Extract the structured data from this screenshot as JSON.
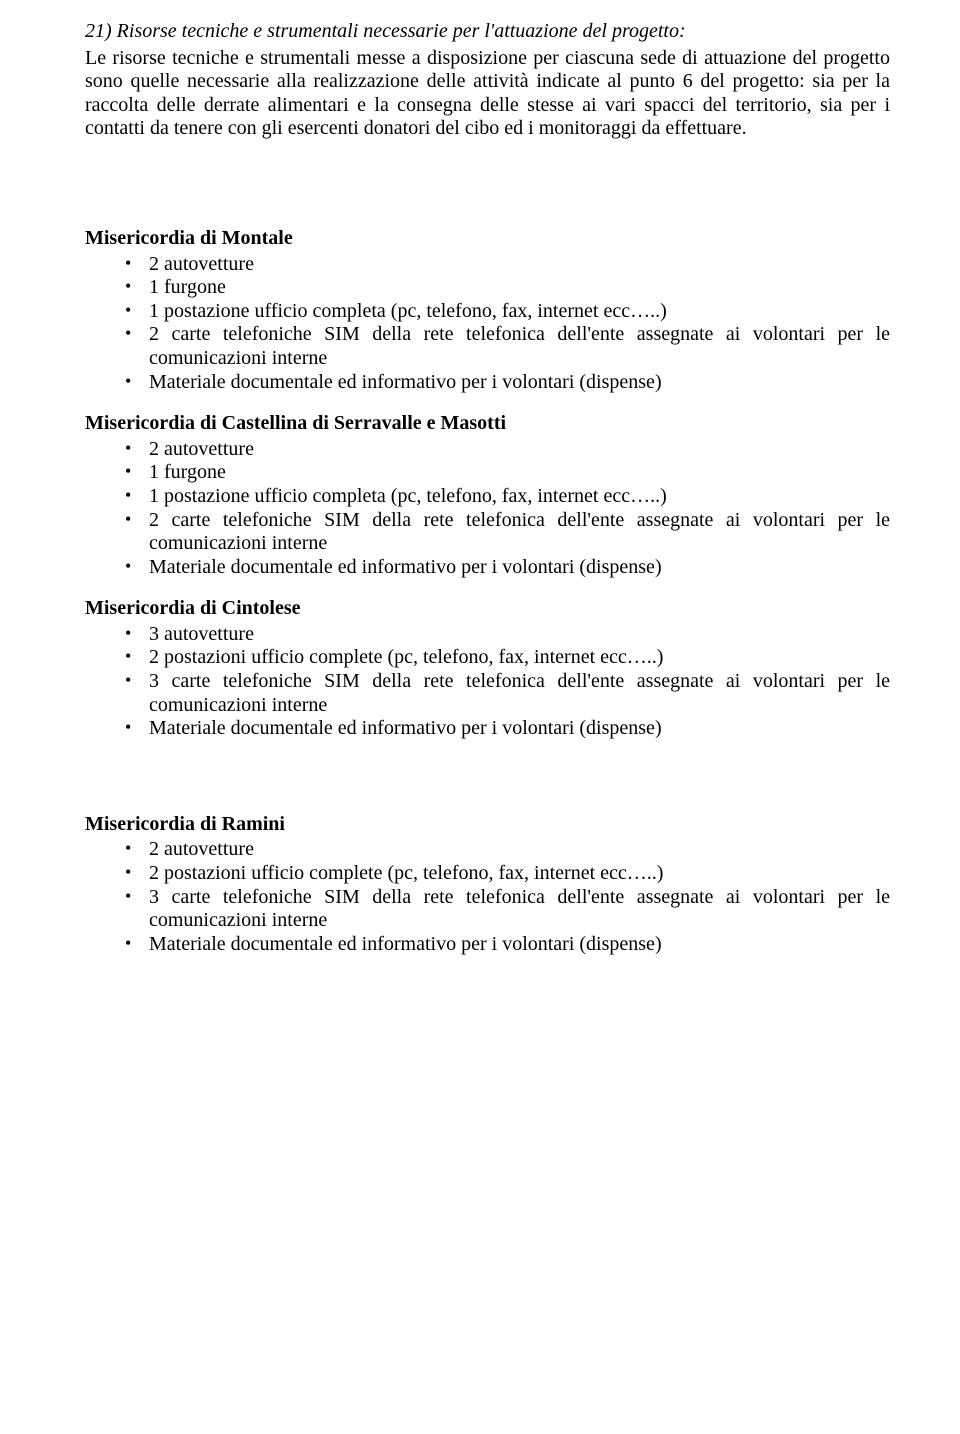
{
  "section": {
    "number": "21)",
    "title_italic": "Risorse tecniche e strumentali necessarie per l'attuazione del progetto:"
  },
  "intro_para": "Le risorse tecniche e strumentali messe a disposizione per ciascuna sede di attuazione del progetto sono quelle necessarie alla realizzazione delle attività indicate al punto 6 del progetto: sia per la raccolta delle derrate alimentari e la consegna delle stesse ai vari spacci del territorio, sia per i contatti da tenere con gli esercenti donatori del cibo ed i monitoraggi da effettuare.",
  "groups": [
    {
      "title": "Misericordia di Montale",
      "items": [
        "2 autovetture",
        "1 furgone",
        "1 postazione ufficio completa (pc, telefono, fax, internet ecc…..)",
        "2 carte telefoniche SIM della rete telefonica dell'ente assegnate ai volontari per le comunicazioni interne",
        "Materiale documentale ed informativo per i volontari (dispense)"
      ]
    },
    {
      "title": "Misericordia di Castellina di Serravalle e Masotti",
      "items": [
        "2 autovetture",
        "1 furgone",
        "1 postazione ufficio completa (pc, telefono, fax, internet ecc…..)",
        "2 carte telefoniche SIM della rete telefonica dell'ente assegnate ai volontari per le comunicazioni interne",
        "Materiale documentale ed informativo per i volontari (dispense)"
      ]
    },
    {
      "title": "Misericordia di Cintolese",
      "items": [
        "3 autovetture",
        "2 postazioni ufficio complete (pc, telefono, fax, internet ecc…..)",
        "3 carte telefoniche SIM della rete telefonica dell'ente assegnate ai volontari per le comunicazioni interne",
        "Materiale documentale ed informativo per i volontari (dispense)"
      ]
    },
    {
      "title": "Misericordia di Ramini",
      "items": [
        "2 autovetture",
        "2 postazioni ufficio complete (pc, telefono, fax, internet ecc…..)",
        "3 carte telefoniche SIM della rete telefonica dell'ente assegnate ai volontari per le comunicazioni interne",
        "Materiale documentale ed informativo per i volontari (dispense)"
      ]
    }
  ]
}
